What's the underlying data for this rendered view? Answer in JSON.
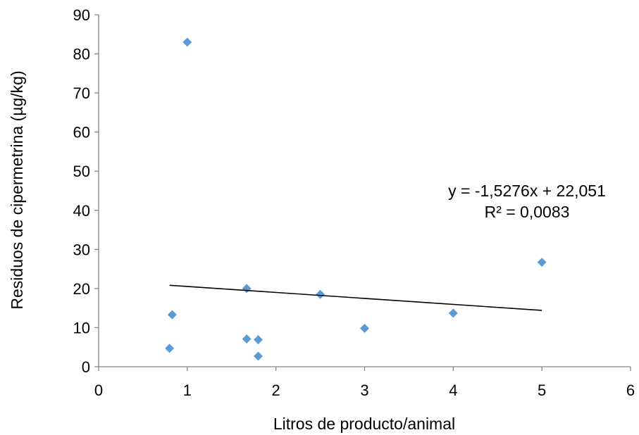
{
  "chart_data": {
    "type": "scatter",
    "title": "",
    "xlabel": "Litros de producto/animal",
    "ylabel": "Residuos de cipermetrina (µg/kg)",
    "xlim": [
      0,
      6
    ],
    "ylim": [
      0,
      90
    ],
    "x_ticks": [
      "0",
      "1",
      "2",
      "3",
      "4",
      "5",
      "6"
    ],
    "y_ticks": [
      "0",
      "10",
      "20",
      "30",
      "40",
      "50",
      "60",
      "70",
      "80",
      "90"
    ],
    "grid": false,
    "legend": "none",
    "marker_color": "#5b9bd5",
    "points": [
      {
        "x": 0.8,
        "y": 4.7
      },
      {
        "x": 0.83,
        "y": 13.3
      },
      {
        "x": 1.0,
        "y": 83.0
      },
      {
        "x": 1.67,
        "y": 7.1
      },
      {
        "x": 1.67,
        "y": 20.0
      },
      {
        "x": 1.8,
        "y": 6.9
      },
      {
        "x": 1.8,
        "y": 2.7
      },
      {
        "x": 2.5,
        "y": 18.5
      },
      {
        "x": 3.0,
        "y": 9.8
      },
      {
        "x": 4.0,
        "y": 13.7
      },
      {
        "x": 5.0,
        "y": 26.7
      }
    ],
    "trendline": {
      "type": "linear",
      "slope": -1.5276,
      "intercept": 22.051,
      "x_range": [
        0.8,
        5.0
      ],
      "color": "#000000",
      "equation_text": "y = -1,5276x + 22,051",
      "r2_text": "R² = 0,0083"
    }
  }
}
